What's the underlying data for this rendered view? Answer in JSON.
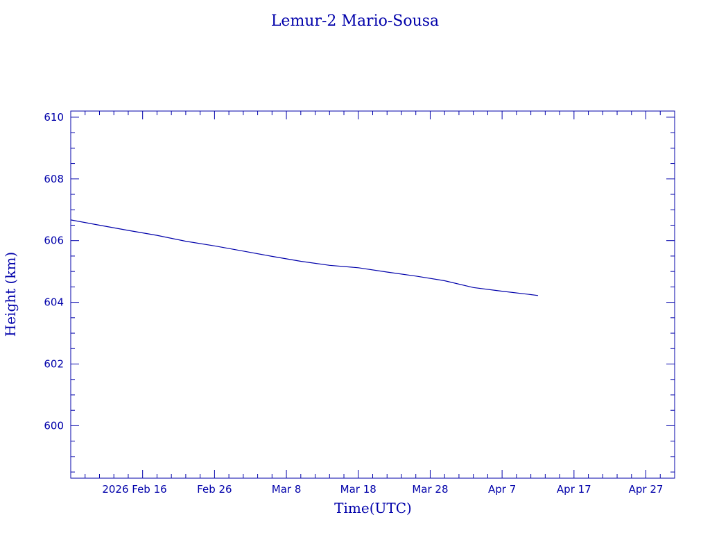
{
  "chart_data": {
    "type": "line",
    "title": "Lemur-2 Mario-Sousa",
    "xlabel": "Time(UTC)",
    "ylabel": "Height (km)",
    "x_tick_labels": [
      "2026 Feb 16",
      "Feb 26",
      "Mar  8",
      "Mar 18",
      "Mar 28",
      "Apr  7",
      "Apr 17",
      "Apr 27"
    ],
    "y_tick_labels": [
      "600",
      "602",
      "604",
      "606",
      "608",
      "610"
    ],
    "xlim": [
      "2026-02-06",
      "2026-05-01"
    ],
    "ylim": [
      598.3,
      610.2
    ],
    "grid": false,
    "color": "#0000aa",
    "series": [
      {
        "x": [
          "2026-02-06",
          "2026-02-10",
          "2026-02-14",
          "2026-02-18",
          "2026-02-22",
          "2026-02-26",
          "2026-03-02",
          "2026-03-06",
          "2026-03-10",
          "2026-03-14",
          "2026-03-18",
          "2026-03-22",
          "2026-03-26",
          "2026-03-30",
          "2026-04-03",
          "2026-04-07",
          "2026-04-11",
          "2026-04-12"
        ],
        "y": [
          606.67,
          606.5,
          606.33,
          606.17,
          605.98,
          605.83,
          605.66,
          605.49,
          605.33,
          605.2,
          605.12,
          604.98,
          604.85,
          604.7,
          604.48,
          604.36,
          604.25,
          604.22
        ]
      }
    ]
  }
}
